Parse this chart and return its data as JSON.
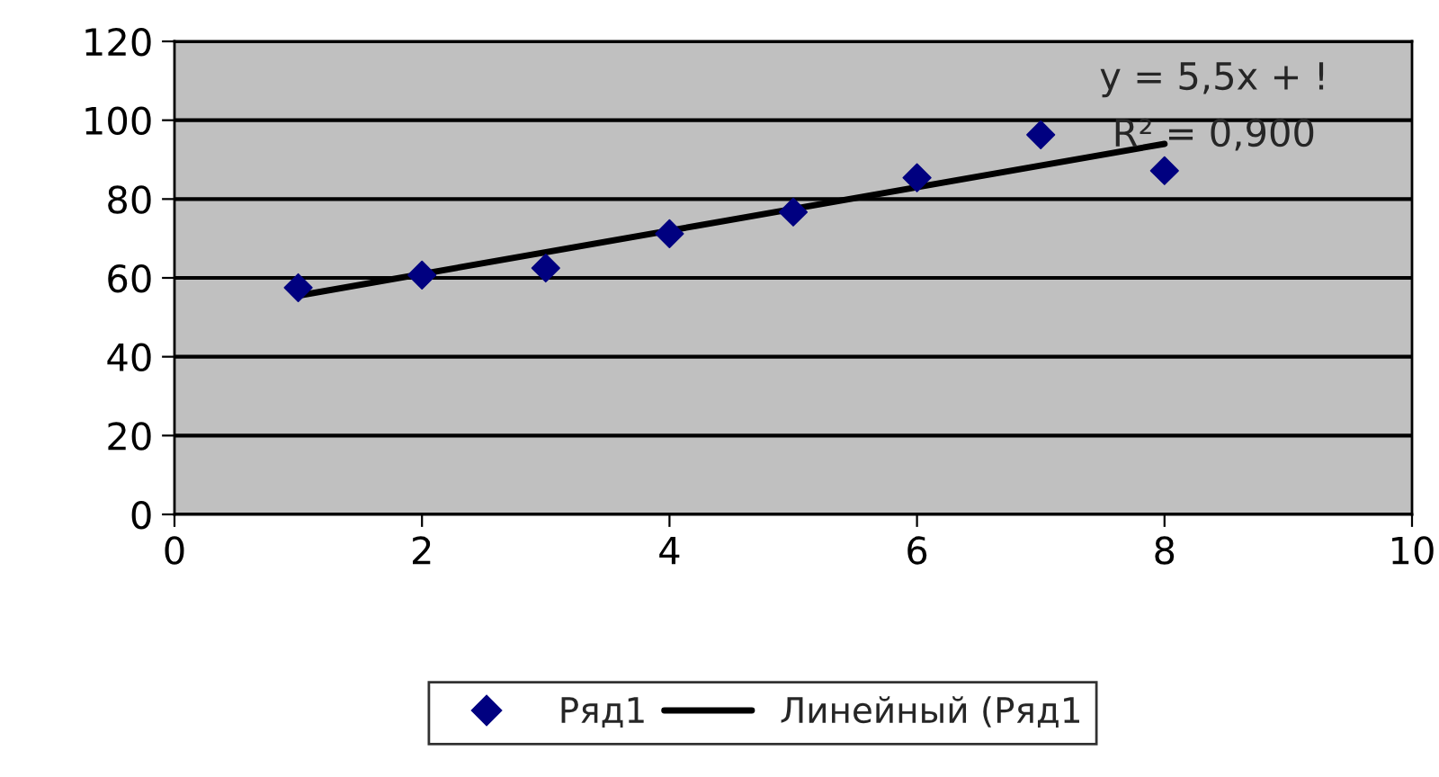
{
  "chart_data": {
    "type": "scatter",
    "x": [
      1,
      2,
      3,
      4,
      5,
      6,
      7,
      8
    ],
    "series": [
      {
        "name": "Ряд1",
        "color": "#000080",
        "marker": "diamond",
        "values": [
          57.5,
          60.7,
          62.5,
          71.2,
          76.7,
          85.4,
          96.3,
          87.2
        ]
      },
      {
        "name": "Линейный (Ряд1",
        "type": "line",
        "color": "#000000",
        "marker": "none",
        "line_style": "solid",
        "x": [
          1,
          8
        ],
        "values": [
          55.5,
          94
        ]
      }
    ],
    "annotations": [
      "y = 5,5x + !",
      "R² = 0,900"
    ],
    "xlim": [
      0,
      10
    ],
    "xticks": [
      0,
      2,
      4,
      6,
      8,
      10
    ],
    "ylim": [
      0,
      120
    ],
    "yticks": [
      0,
      20,
      40,
      60,
      80,
      100,
      120
    ],
    "grid": "y",
    "legend": "bottom"
  }
}
